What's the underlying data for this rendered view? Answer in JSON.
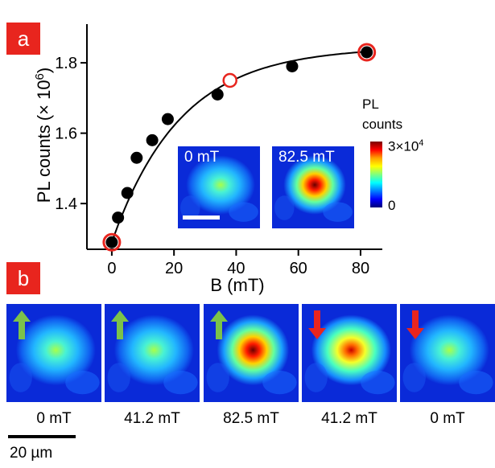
{
  "panel_a_label": "a",
  "panel_b_label": "b",
  "chart_data": {
    "type": "scatter",
    "xlabel": "B (mT)",
    "ylabel_main": "PL counts",
    "ylabel_unit": "(× 10",
    "ylabel_exp": "6",
    "ylabel_close": ")",
    "xlim": [
      -8,
      87
    ],
    "ylim": [
      1.27,
      1.91
    ],
    "xticks": [
      0,
      20,
      40,
      60,
      80
    ],
    "yticks": [
      1.4,
      1.6,
      1.8
    ],
    "x": [
      0,
      2,
      5,
      8,
      13,
      18,
      34,
      38,
      58,
      82
    ],
    "y": [
      1.29,
      1.36,
      1.43,
      1.53,
      1.58,
      1.64,
      1.71,
      1.75,
      1.79,
      1.83
    ],
    "highlighted_x": [
      0,
      38,
      82
    ],
    "hollow_x": [
      38
    ],
    "fit": "exponential saturation"
  },
  "insets": [
    {
      "label": "0 mT",
      "intensity": 0.45
    },
    {
      "label": "82.5 mT",
      "intensity": 1.0
    }
  ],
  "colorbar": {
    "title_line1": "PL",
    "title_line2": "counts",
    "max_label": "3×10",
    "max_exp": "4",
    "min_label": "0"
  },
  "strip": [
    {
      "label": "0 mT",
      "arrow": "up",
      "intensity": 0.5
    },
    {
      "label": "41.2 mT",
      "arrow": "up",
      "intensity": 0.45
    },
    {
      "label": "82.5 mT",
      "arrow": "up",
      "intensity": 1.0
    },
    {
      "label": "41.2 mT",
      "arrow": "down",
      "intensity": 0.82
    },
    {
      "label": "0 mT",
      "arrow": "down",
      "intensity": 0.6
    }
  ],
  "scalebar_label": "20 µm",
  "colors": {
    "badge": "#e8251e",
    "arrow_up": "#7cc24a",
    "arrow_down": "#e8251e",
    "highlight_ring": "#e8251e"
  }
}
